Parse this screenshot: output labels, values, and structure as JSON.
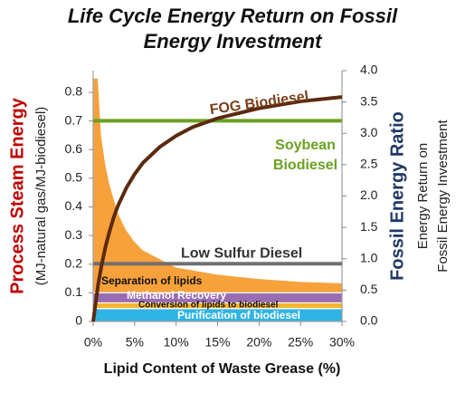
{
  "chart_data": {
    "type": "combo",
    "title": "Life Cycle Energy Return on Fossil Energy Investment",
    "xlabel": "Lipid Content of Waste Grease (%)",
    "ylabel": "Process Steam Energy",
    "ylabel_sub": "(MJ-natural gas/MJ-biodiesel)",
    "y2label": "Fossil Energy Ratio",
    "y2label_sub": [
      "Energy Return on",
      "Fossil Energy Investment"
    ],
    "x": [
      0,
      0.6,
      1,
      1.5,
      2,
      2.5,
      3,
      4,
      5,
      6,
      8,
      10,
      12,
      15,
      20,
      25,
      30
    ],
    "xlim": [
      0,
      30
    ],
    "xticks": [
      {
        "value": 0,
        "label": "0%"
      },
      {
        "value": 5,
        "label": "5%"
      },
      {
        "value": 10,
        "label": "10%"
      },
      {
        "value": 15,
        "label": "15%"
      },
      {
        "value": 20,
        "label": "20%"
      },
      {
        "value": 25,
        "label": "25%"
      },
      {
        "value": 30,
        "label": "30%"
      }
    ],
    "ylim": [
      0,
      0.876
    ],
    "yticks": [
      0,
      0.1,
      0.2,
      0.3,
      0.4,
      0.5,
      0.6,
      0.7,
      0.8
    ],
    "y2lim": [
      0,
      4
    ],
    "y2ticks": [
      {
        "value": 0,
        "label": "0.0"
      },
      {
        "value": 0.5,
        "label": "0.5"
      },
      {
        "value": 1,
        "label": "1.0"
      },
      {
        "value": 1.5,
        "label": "1.5"
      },
      {
        "value": 2,
        "label": "2.0"
      },
      {
        "value": 2.5,
        "label": "2.5"
      },
      {
        "value": 3,
        "label": "3.0"
      },
      {
        "value": 3.5,
        "label": "3.5"
      },
      {
        "value": 4,
        "label": "4.0"
      }
    ],
    "series": [
      {
        "name": "Purification of biodiesel",
        "type": "area",
        "stacked": true,
        "color": "#2fb4e4",
        "values": [
          0.045,
          0.045,
          0.045,
          0.045,
          0.045,
          0.045,
          0.045,
          0.045,
          0.045,
          0.045,
          0.045,
          0.045,
          0.045,
          0.045,
          0.045,
          0.045,
          0.045
        ]
      },
      {
        "name": "Conversion of lipids to biodiesel",
        "type": "area",
        "stacked": true,
        "color": "#f5b62a",
        "values": [
          0.02,
          0.02,
          0.02,
          0.02,
          0.02,
          0.02,
          0.02,
          0.02,
          0.02,
          0.02,
          0.02,
          0.02,
          0.02,
          0.02,
          0.02,
          0.02,
          0.02
        ]
      },
      {
        "name": "Methanol Recovery",
        "type": "area",
        "stacked": true,
        "color": "#9a6db3",
        "values": [
          0.035,
          0.035,
          0.035,
          0.035,
          0.035,
          0.035,
          0.035,
          0.035,
          0.035,
          0.035,
          0.035,
          0.035,
          0.035,
          0.035,
          0.035,
          0.035,
          0.035
        ]
      },
      {
        "name": "Separation of lipids",
        "type": "area",
        "stacked": true,
        "color": "#f7a13a",
        "values": [
          0.75,
          0.75,
          0.55,
          0.45,
          0.38,
          0.33,
          0.28,
          0.22,
          0.18,
          0.15,
          0.12,
          0.09,
          0.08,
          0.065,
          0.05,
          0.04,
          0.035
        ]
      },
      {
        "name": "FOG Biodiesel",
        "type": "line",
        "axis": "y2",
        "color": "#5c2a0e",
        "values": [
          0,
          0.59,
          0.89,
          1.2,
          1.45,
          1.67,
          1.85,
          2.13,
          2.35,
          2.53,
          2.78,
          2.96,
          3.1,
          3.24,
          3.4,
          3.51,
          3.58
        ]
      }
    ],
    "hlines": [
      {
        "name": "Soybean Biodiesel",
        "value": 3.2,
        "axis": "y2",
        "color": "#6aa121"
      },
      {
        "name": "Low Sulfur Diesel",
        "value": 0.92,
        "axis": "y2",
        "color": "#707070"
      }
    ]
  }
}
